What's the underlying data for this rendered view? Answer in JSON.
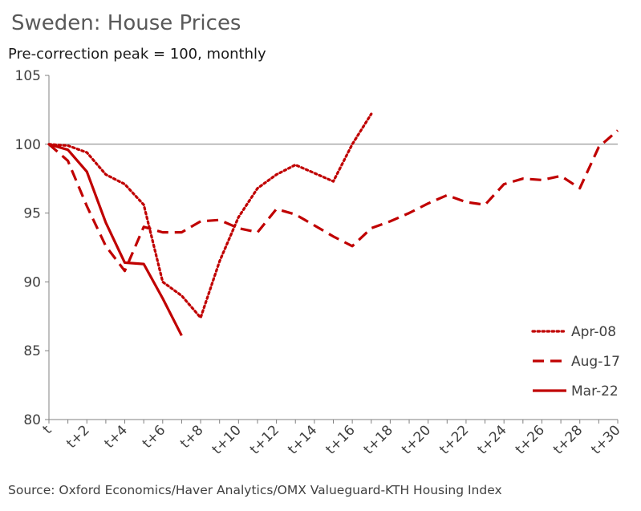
{
  "chart_data": {
    "type": "line",
    "title": "Sweden: House Prices",
    "subtitle": "Pre-correction peak = 100, monthly",
    "source": "Source: Oxford Economics/Haver Analytics/OMX Valueguard-KTH Housing Index",
    "ylim": [
      80,
      105
    ],
    "yticks": [
      80,
      85,
      90,
      95,
      100,
      105
    ],
    "x_count": 31,
    "x_labels": [
      "t",
      "t+2",
      "t+4",
      "t+6",
      "t+8",
      "t+10",
      "t+12",
      "t+14",
      "t+16",
      "t+18",
      "t+20",
      "t+22",
      "t+24",
      "t+26",
      "t+28",
      "t+30"
    ],
    "reference_line": 100,
    "legend_position": "bottom-right",
    "series": [
      {
        "name": "Apr-08",
        "style": "dotted",
        "color": "#C00000",
        "values": [
          100,
          99.9,
          99.4,
          97.8,
          97.1,
          95.6,
          90.0,
          89.0,
          87.4,
          91.5,
          94.7,
          96.8,
          97.8,
          98.5,
          97.9,
          97.3,
          100.0,
          102.2
        ]
      },
      {
        "name": "Aug-17",
        "style": "dashed",
        "color": "#C00000",
        "values": [
          100,
          98.8,
          95.5,
          92.6,
          90.8,
          94.0,
          93.6,
          93.6,
          94.4,
          94.5,
          93.9,
          93.6,
          95.3,
          94.9,
          94.1,
          93.3,
          92.6,
          93.9,
          94.4,
          95.0,
          95.7,
          96.3,
          95.8,
          95.6,
          97.1,
          97.5,
          97.4,
          97.7,
          96.8,
          99.8,
          101.0
        ]
      },
      {
        "name": "Mar-22",
        "style": "solid",
        "color": "#C00000",
        "values": [
          100,
          99.6,
          98.0,
          94.3,
          91.4,
          91.3,
          88.8,
          86.1
        ]
      }
    ]
  }
}
